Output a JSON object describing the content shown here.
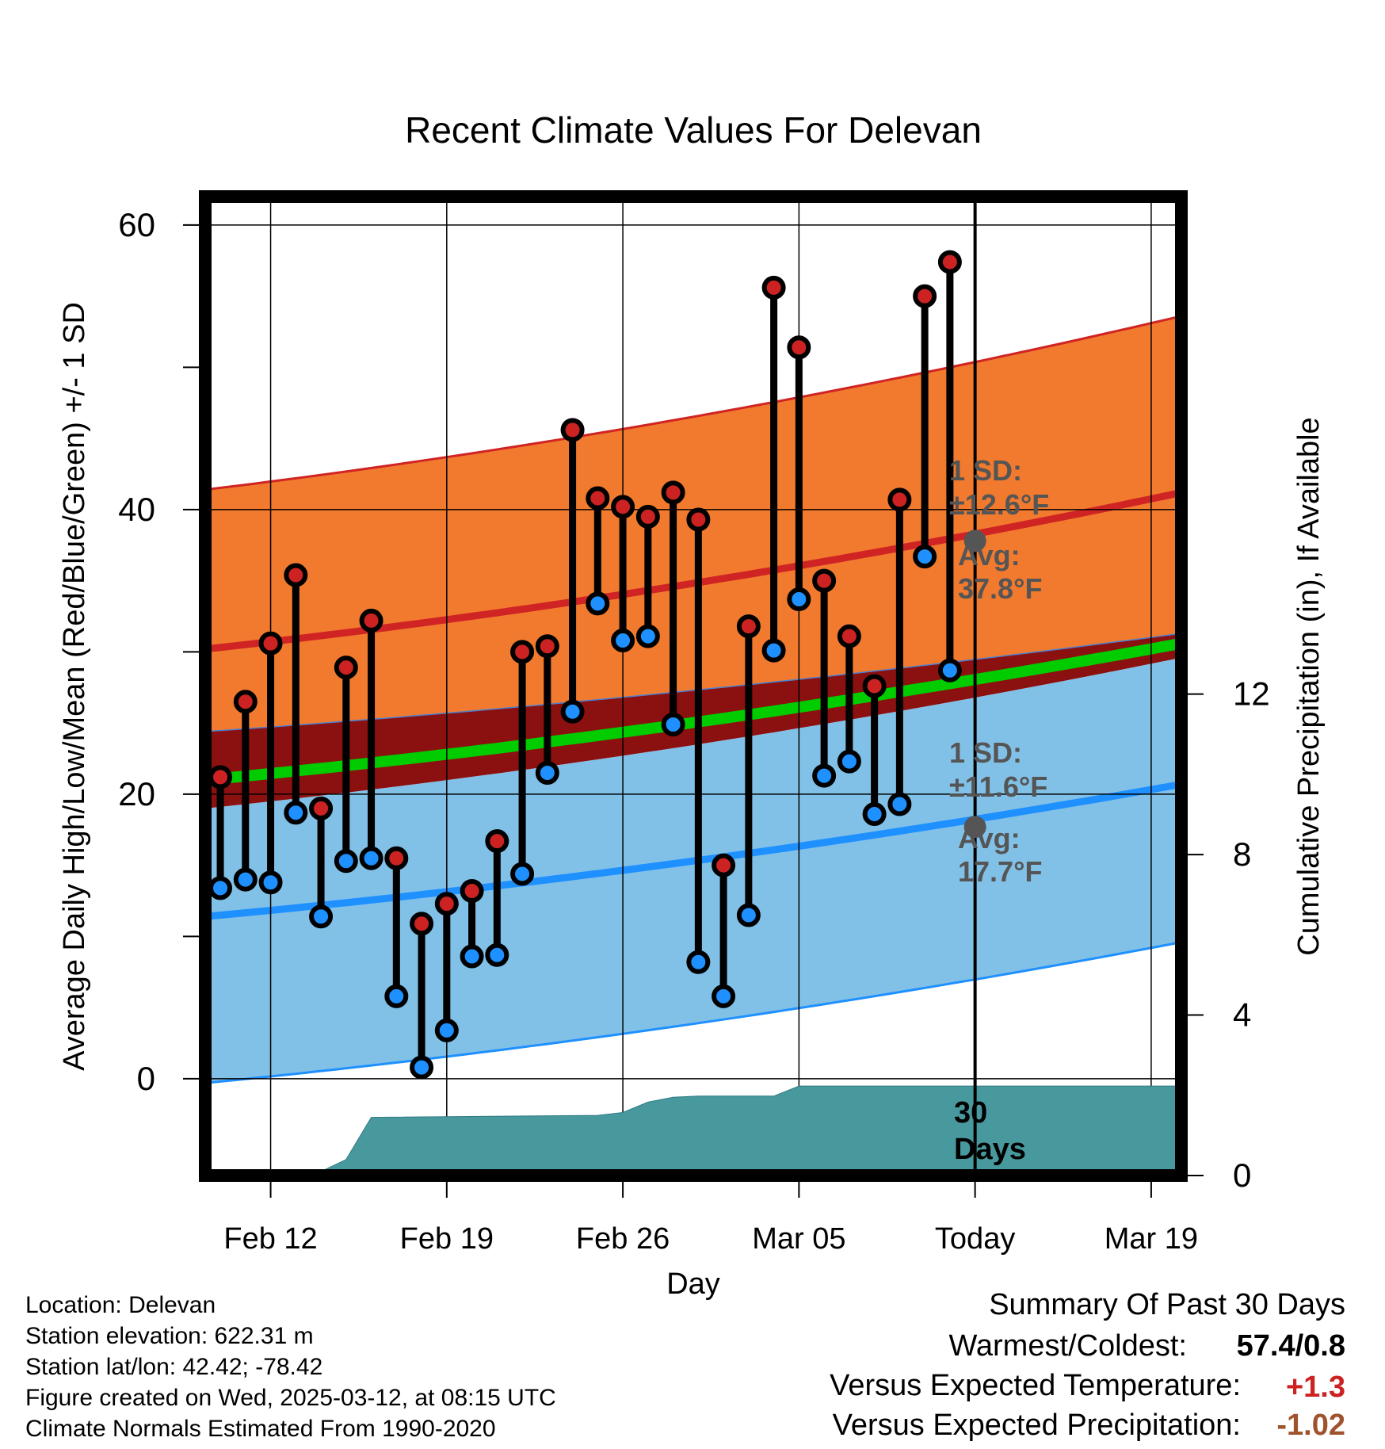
{
  "chart_data": {
    "type": "line",
    "title": "Recent Climate Values For Delevan",
    "xlabel": "Day",
    "ylabel": "Average Daily High/Low/Mean (Red/Blue/Green) +/- 1 SD",
    "y2label": "Cumulative Precipitation (in), If Available",
    "ylim": [
      -6.8,
      62
    ],
    "y2lim": [
      0,
      24.4
    ],
    "xlim": [
      -27.6,
      11.2
    ],
    "x_tick_labels": [
      {
        "day": -25,
        "label": "Feb 12"
      },
      {
        "day": -18,
        "label": "Feb 19"
      },
      {
        "day": -11,
        "label": "Feb 26"
      },
      {
        "day": -4,
        "label": "Mar 05"
      },
      {
        "day": 3,
        "label": "Today"
      },
      {
        "day": 10,
        "label": "Mar 19"
      }
    ],
    "y_tick_labels": [
      "0",
      "20",
      "40",
      "60"
    ],
    "y_ticks": [
      0,
      10,
      20,
      30,
      40,
      50,
      60
    ],
    "y2_tick_labels": [
      "0",
      "4",
      "8",
      "12"
    ],
    "y2_ticks": [
      0,
      4,
      8,
      12
    ],
    "today_day": 3,
    "today_label": "Today",
    "normals": {
      "x": [
        -27.6,
        11.2
      ],
      "high_mean": [
        30.2,
        41.2
      ],
      "high_upper": [
        41.4,
        53.6
      ],
      "high_lower": [
        24.4,
        31.3
      ],
      "mean": [
        21.0,
        30.6
      ],
      "low_mean": [
        11.4,
        20.7
      ],
      "low_upper": [
        19.0,
        29.6
      ],
      "low_lower": [
        -0.3,
        9.6
      ]
    },
    "daily": {
      "day": [
        -27,
        -26,
        -25,
        -24,
        -23,
        -22,
        -21,
        -20,
        -19,
        -18,
        -17,
        -16,
        -15,
        -14,
        -13,
        -12,
        -11,
        -10,
        -9,
        -8,
        -7,
        -6,
        -5,
        -4,
        -3,
        -2,
        -1,
        0,
        1,
        2
      ],
      "high": [
        21.2,
        26.5,
        30.6,
        35.4,
        19.0,
        28.9,
        32.2,
        15.5,
        10.9,
        12.3,
        13.2,
        16.7,
        30.0,
        30.4,
        45.6,
        40.8,
        40.2,
        39.5,
        41.2,
        39.3,
        15.0,
        31.8,
        55.6,
        51.4,
        35.0,
        31.1,
        27.6,
        40.7,
        55.0,
        57.4
      ],
      "low": [
        13.4,
        14.0,
        13.8,
        18.7,
        11.4,
        15.3,
        15.5,
        5.8,
        0.8,
        3.4,
        8.6,
        8.7,
        14.4,
        21.5,
        25.8,
        33.4,
        30.8,
        31.1,
        24.9,
        8.2,
        5.8,
        11.5,
        30.1,
        33.7,
        21.3,
        22.3,
        18.6,
        19.3,
        36.7,
        28.7
      ]
    },
    "precip": {
      "day": [
        -27.6,
        -25,
        -24,
        -23,
        -22,
        -21,
        -12,
        -11,
        -10,
        -9,
        -8,
        -7,
        -6,
        -5,
        -4,
        -3,
        -2,
        0,
        2,
        11.2
      ],
      "cumulative": [
        0.0,
        0.0,
        0.04,
        0.1,
        0.4,
        1.45,
        1.5,
        1.57,
        1.83,
        1.95,
        1.98,
        1.98,
        1.98,
        1.98,
        2.23,
        2.23,
        2.23,
        2.23,
        2.23,
        2.23
      ]
    },
    "annotations": {
      "high_sd": "1 SD:",
      "high_sd_value": "±12.6°F",
      "high_avg": "Avg:",
      "high_avg_value": "37.8°F",
      "high_today_value": 37.8,
      "low_sd": "1 SD:",
      "low_sd_value": "±11.6°F",
      "low_avg": "Avg:",
      "low_avg_value": "17.7°F",
      "low_today_value": 17.7,
      "days_number": "30",
      "days_word": "Days"
    },
    "colors": {
      "high_band": "#f27a2e",
      "high_line": "#d02424",
      "low_band": "#82c1e7",
      "low_line": "#1e90ff",
      "mean_band": "#8b1010",
      "mean_line": "#00cc00",
      "precip": "#48999e",
      "high_dot": "#cc2222",
      "low_dot": "#1e90ff",
      "avg_dot": "#555555"
    }
  },
  "footer": {
    "location": "Location: Delevan",
    "elevation": "Station elevation: 622.31 m",
    "latlon": "Station lat/lon: 42.42; -78.42",
    "created": "Figure created on Wed, 2025-03-12, at 08:15 UTC",
    "normals": "Climate Normals Estimated From 1990-2020"
  },
  "summary": {
    "title": "Summary Of Past 30 Days",
    "warm_cold_label": "Warmest/Coldest:",
    "warm_cold_value": "57.4/0.8",
    "temp_label": "Versus Expected Temperature:",
    "temp_value": "+1.3",
    "temp_color": "#cc2222",
    "precip_label": "Versus Expected Precipitation:",
    "precip_value": "-1.02",
    "precip_color": "#a0522d"
  }
}
